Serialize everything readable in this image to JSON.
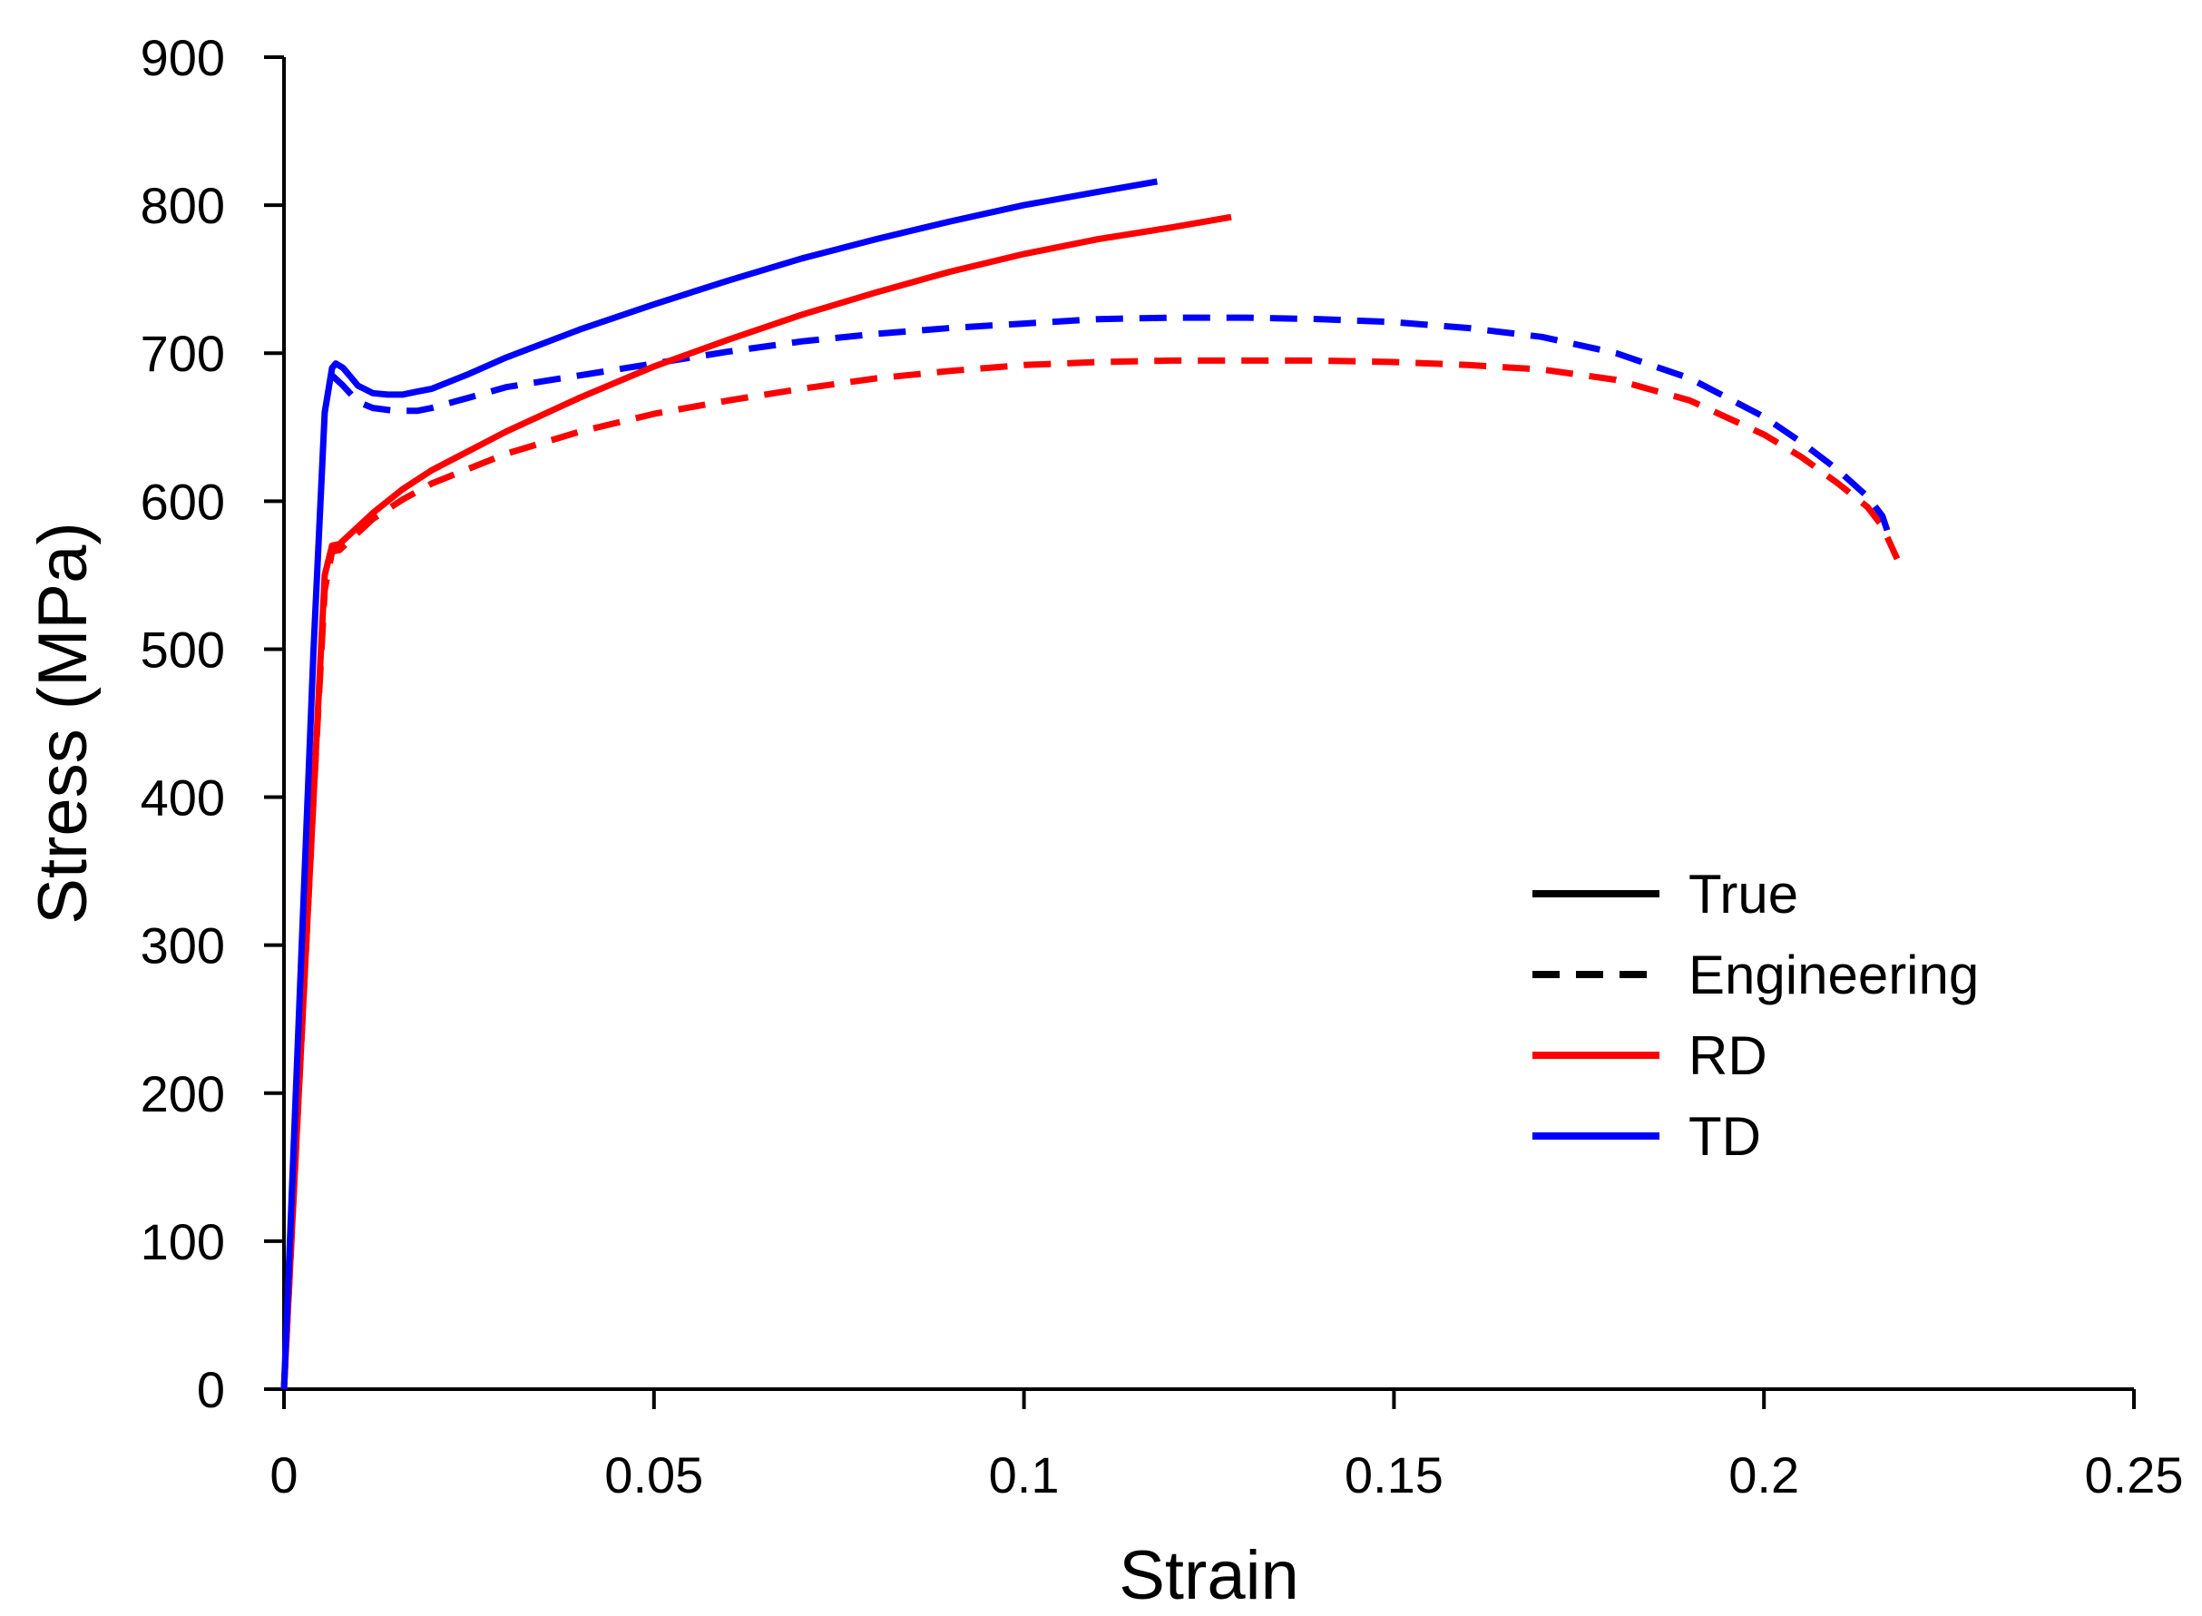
{
  "chart_data": {
    "type": "line",
    "title": "",
    "xlabel": "Strain",
    "ylabel": "Stress (MPa)",
    "xlim": [
      0,
      0.25
    ],
    "ylim": [
      0,
      900
    ],
    "xticks": [
      0,
      0.05,
      0.1,
      0.15,
      0.2,
      0.25
    ],
    "xtick_labels": [
      "0",
      "0.05",
      "0.1",
      "0.15",
      "0.2",
      "0.25"
    ],
    "yticks": [
      0,
      100,
      200,
      300,
      400,
      500,
      600,
      700,
      800,
      900
    ],
    "ytick_labels": [
      "0",
      "100",
      "200",
      "300",
      "400",
      "500",
      "600",
      "700",
      "800",
      "900"
    ],
    "grid": false,
    "legend_position": "right-middle",
    "legend": [
      {
        "label": "True",
        "color": "#000000",
        "style": "solid"
      },
      {
        "label": "Engineering",
        "color": "#000000",
        "style": "dashed"
      },
      {
        "label": "RD",
        "color": "#ff0000",
        "style": "solid"
      },
      {
        "label": "TD",
        "color": "#0000ff",
        "style": "solid"
      }
    ],
    "series": [
      {
        "name": "RD Engineering",
        "color": "#ff0000",
        "style": "dashed",
        "x": [
          0,
          0.002,
          0.004,
          0.0055,
          0.0065,
          0.0075,
          0.009,
          0.012,
          0.016,
          0.02,
          0.03,
          0.04,
          0.05,
          0.06,
          0.07,
          0.08,
          0.09,
          0.1,
          0.11,
          0.12,
          0.13,
          0.14,
          0.15,
          0.16,
          0.17,
          0.18,
          0.19,
          0.2,
          0.205,
          0.21,
          0.214,
          0.216,
          0.218
        ],
        "y": [
          0,
          200,
          400,
          540,
          566,
          567,
          574,
          588,
          601,
          612,
          632,
          647,
          659,
          668,
          676,
          683,
          688,
          692,
          694,
          695,
          695,
          695,
          694,
          692,
          689,
          682,
          668,
          645,
          630,
          612,
          596,
          583,
          561
        ]
      },
      {
        "name": "TD Engineering",
        "color": "#0000ff",
        "style": "dashed",
        "x": [
          0.0065,
          0.008,
          0.01,
          0.012,
          0.015,
          0.018,
          0.02,
          0.025,
          0.03,
          0.04,
          0.05,
          0.06,
          0.07,
          0.08,
          0.09,
          0.1,
          0.11,
          0.12,
          0.13,
          0.14,
          0.15,
          0.16,
          0.17,
          0.18,
          0.19,
          0.2,
          0.205,
          0.21,
          0.214,
          0.216,
          0.217
        ],
        "y": [
          685,
          678,
          667,
          663,
          661,
          661,
          663,
          670,
          677,
          685,
          693,
          701,
          708,
          713,
          717,
          720,
          723,
          724,
          724,
          723,
          721,
          717,
          711,
          700,
          683,
          657,
          640,
          621,
          603,
          590,
          575
        ]
      },
      {
        "name": "RD True",
        "color": "#ff0000",
        "style": "solid",
        "x": [
          0,
          0.002,
          0.004,
          0.0055,
          0.0065,
          0.0075,
          0.009,
          0.012,
          0.016,
          0.02,
          0.03,
          0.04,
          0.05,
          0.06,
          0.07,
          0.08,
          0.09,
          0.1,
          0.11,
          0.12,
          0.128
        ],
        "y": [
          0,
          200,
          400,
          550,
          570,
          571,
          578,
          592,
          608,
          621,
          647,
          670,
          691,
          709,
          726,
          741,
          755,
          767,
          777,
          785,
          792
        ]
      },
      {
        "name": "TD True",
        "color": "#0000ff",
        "style": "solid",
        "x": [
          0,
          0.002,
          0.004,
          0.0055,
          0.0065,
          0.007,
          0.008,
          0.009,
          0.01,
          0.012,
          0.014,
          0.016,
          0.018,
          0.02,
          0.025,
          0.03,
          0.04,
          0.05,
          0.06,
          0.07,
          0.08,
          0.09,
          0.1,
          0.11,
          0.118
        ],
        "y": [
          0,
          250,
          500,
          660,
          690,
          693,
          690,
          684,
          678,
          673,
          672,
          672,
          674,
          676,
          686,
          697,
          716,
          733,
          749,
          764,
          777,
          789,
          800,
          809,
          816
        ]
      }
    ]
  }
}
